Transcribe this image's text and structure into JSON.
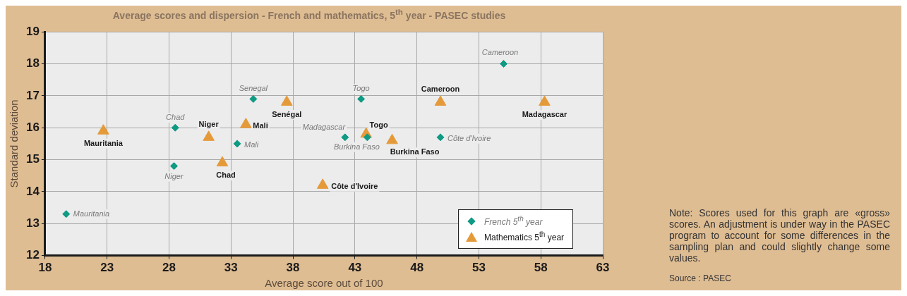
{
  "chart_data": {
    "type": "scatter",
    "title": "Average scores and dispersion - French and mathematics, 5$^{th}$ year - PASEC studies",
    "xlabel": "Average score out of 100",
    "ylabel": "Standard deviation",
    "xlim": [
      18,
      63
    ],
    "xticks": [
      18,
      23,
      28,
      33,
      38,
      43,
      48,
      53,
      58,
      63
    ],
    "ylim": [
      12,
      19
    ],
    "yticks": [
      12,
      13,
      14,
      15,
      16,
      17,
      18,
      19
    ],
    "grid": true,
    "legend": "bottom right",
    "series": [
      {
        "name": "French 5$^{th}$ year",
        "color": "#0f9a84",
        "marker": "diamond",
        "x": [
          19.7,
          28.4,
          28.5,
          33.5,
          34.8,
          43.5,
          42.2,
          44.0,
          49.9,
          55.0
        ],
        "values": [
          13.3,
          14.8,
          16.0,
          15.5,
          16.9,
          16.9,
          15.7,
          15.7,
          15.7,
          18.0
        ]
      },
      {
        "name": "Mathematics 5$^{th}$ year",
        "color": "#e59a3a",
        "marker": "triangle",
        "x": [
          22.7,
          31.2,
          32.3,
          34.2,
          37.5,
          40.4,
          43.9,
          46.0,
          49.9,
          58.3
        ],
        "values": [
          15.9,
          15.7,
          14.9,
          16.1,
          16.8,
          14.2,
          15.8,
          15.6,
          16.8,
          16.8
        ]
      }
    ],
    "annotations": [
      {
        "text": "Mauritania",
        "x": 19.7,
        "y": 13.3
      },
      {
        "text": "Niger",
        "x": 28.4,
        "y": 14.8
      },
      {
        "text": "Chad",
        "x": 28.5,
        "y": 16.0
      },
      {
        "text": "Mali",
        "x": 33.5,
        "y": 15.5
      },
      {
        "text": "Senegal",
        "x": 34.8,
        "y": 16.9
      },
      {
        "text": "Togo",
        "x": 43.5,
        "y": 16.9
      },
      {
        "text": "Madagascar",
        "x": 42.2,
        "y": 15.7
      },
      {
        "text": "Burkina Faso",
        "x": 44.0,
        "y": 15.7
      },
      {
        "text": "Côte d'Ivoire",
        "x": 49.9,
        "y": 15.7
      },
      {
        "text": "Cameroon",
        "x": 55.0,
        "y": 18.0
      },
      {
        "text": "Mauritania",
        "x": 22.7,
        "y": 15.9
      },
      {
        "text": "Niger",
        "x": 31.2,
        "y": 15.7
      },
      {
        "text": "Chad",
        "x": 32.3,
        "y": 14.9
      },
      {
        "text": "Mali",
        "x": 34.2,
        "y": 16.1
      },
      {
        "text": "Senégal",
        "x": 37.5,
        "y": 16.8
      },
      {
        "text": "Côte d'Ivoire",
        "x": 40.4,
        "y": 14.2
      },
      {
        "text": "Togo",
        "x": 43.9,
        "y": 15.8
      },
      {
        "text": "Burkina Faso",
        "x": 46.0,
        "y": 15.6
      },
      {
        "text": "Cameroon",
        "x": 49.9,
        "y": 16.8
      },
      {
        "text": "Madagascar",
        "x": 58.3,
        "y": 16.8
      },
      "Note: Scores used for this graph are «gross» scores.  An adjustment is under way in the PASEC program to account for some differences in the sampling plan and could slightly change some values.",
      "Source : PASEC"
    ]
  }
}
